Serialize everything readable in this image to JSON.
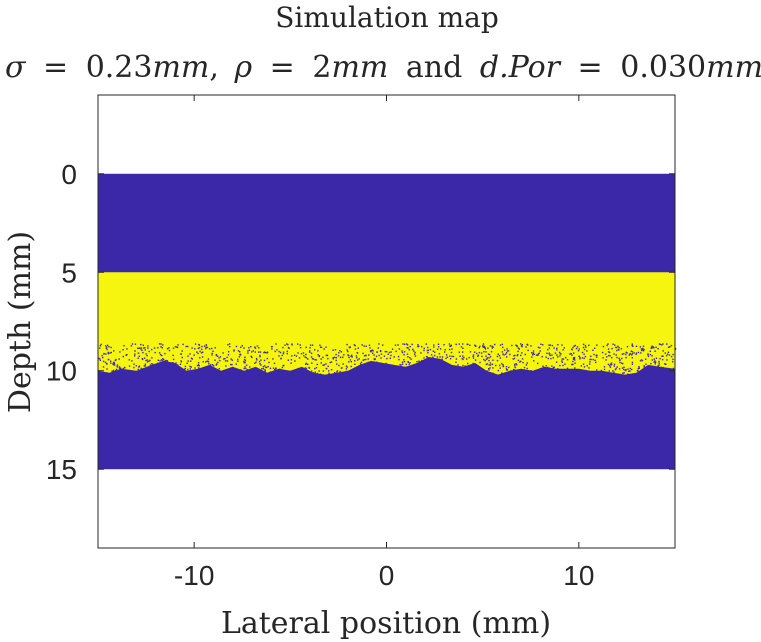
{
  "chart_data": {
    "type": "heatmap",
    "title": "Simulation map",
    "subtitle": {
      "sigma_symbol": "σ",
      "sigma_value": "0.23",
      "rho_symbol": "ρ",
      "rho_value": "2",
      "unit": "mm",
      "por_symbol": "d.Por",
      "por_value": "0.030",
      "and_text": "and",
      "eq": "=",
      "comma": ","
    },
    "xlabel": "Lateral position (mm)",
    "ylabel": "Depth (mm)",
    "xlim": [
      -15,
      15
    ],
    "ylim": [
      -4,
      19
    ],
    "y_reversed": true,
    "xticks": [
      -10,
      0,
      10
    ],
    "xtick_labels": [
      "-10",
      "0",
      "10"
    ],
    "yticks": [
      0,
      5,
      10,
      15
    ],
    "ytick_labels": [
      "0",
      "5",
      "10",
      "15"
    ],
    "grid": false,
    "colors": {
      "medium": "#3b28a8",
      "layer": "#f6f510",
      "background": "#ffffff",
      "axis": "#262626"
    },
    "regions": [
      {
        "label": "medium",
        "x": [
          -15,
          15
        ],
        "depth": [
          0,
          15
        ]
      },
      {
        "label": "layer",
        "x": [
          -15,
          15
        ],
        "depth": [
          5,
          8.6
        ]
      }
    ],
    "rough_interface": {
      "x": [
        -15,
        -14.4,
        -13.8,
        -13,
        -12.2,
        -11.6,
        -11,
        -10.4,
        -9.8,
        -9.2,
        -8.6,
        -8,
        -7.4,
        -6.8,
        -6.2,
        -5.6,
        -5,
        -4.4,
        -3.8,
        -3.2,
        -2.6,
        -2,
        -1.4,
        -0.8,
        -0.2,
        0.4,
        1,
        1.6,
        2.2,
        2.8,
        3.4,
        4,
        4.6,
        5.2,
        5.8,
        6.4,
        7,
        7.6,
        8.2,
        8.8,
        9.4,
        10,
        10.6,
        11.2,
        11.8,
        12.4,
        13,
        13.6,
        14.2,
        15
      ],
      "depth": [
        10.0,
        10.1,
        9.9,
        10.0,
        9.7,
        9.5,
        9.6,
        10.0,
        9.9,
        9.7,
        10.0,
        9.8,
        10.0,
        9.8,
        10.1,
        9.9,
        10.0,
        9.8,
        10.1,
        10.2,
        10.1,
        10.0,
        9.7,
        9.5,
        9.6,
        9.7,
        9.8,
        9.6,
        9.3,
        9.4,
        9.7,
        9.8,
        9.6,
        10.0,
        10.2,
        10.0,
        9.9,
        10.0,
        9.8,
        9.9,
        9.9,
        9.9,
        10.0,
        10.0,
        10.1,
        10.2,
        10.1,
        9.7,
        9.8,
        9.9
      ]
    },
    "porosity_band": {
      "depth": [
        8.6,
        10.2
      ],
      "density": 0.03
    }
  }
}
